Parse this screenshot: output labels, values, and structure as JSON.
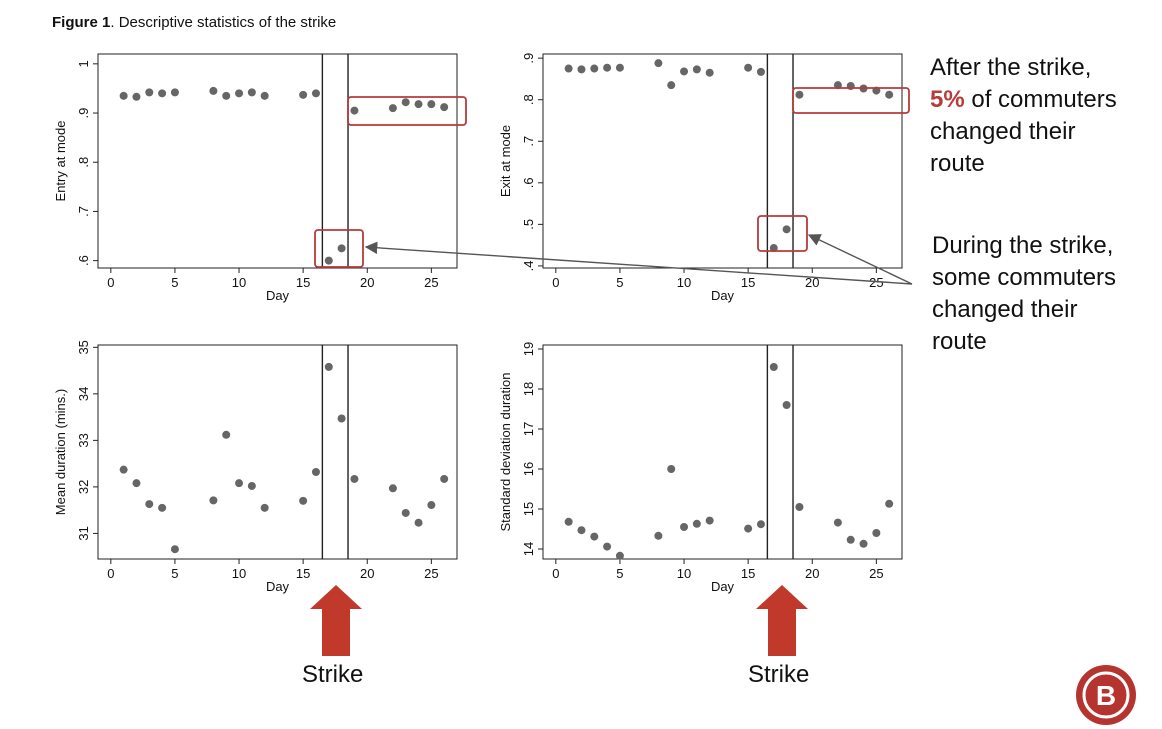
{
  "figure": {
    "title_bold": "Figure 1",
    "title_rest": ". Descriptive statistics of the strike"
  },
  "callouts": {
    "after": {
      "line1": "After the strike,",
      "highlight": "5%",
      "rest": " of commuters",
      "line3": "changed their",
      "line4": "route"
    },
    "during": {
      "line1": "During the strike,",
      "line2": "some commuters",
      "line3": "changed their",
      "line4": "route"
    }
  },
  "strike_labels": [
    "Strike",
    "Strike"
  ],
  "logo": {
    "letter": "B"
  },
  "colors": {
    "points": "#666666",
    "accent": "#b83a3a",
    "arrow": "#c0392b",
    "logo_bg": "#b5342f"
  },
  "chart_data": [
    {
      "type": "scatter",
      "ylabel": "Entry at mode",
      "xlabel": "Day",
      "xlim": [
        -1,
        27
      ],
      "ylim": [
        0.585,
        1.02
      ],
      "xticks": [
        0,
        5,
        10,
        15,
        20,
        25
      ],
      "yticks": [
        ".6",
        ".7",
        ".8",
        ".9",
        "1"
      ],
      "ytick_values": [
        0.6,
        0.7,
        0.8,
        0.9,
        1.0
      ],
      "strike_lines": [
        16.5,
        18.5
      ],
      "grid": false,
      "x": [
        1,
        2,
        3,
        4,
        5,
        8,
        9,
        10,
        11,
        12,
        15,
        16,
        17,
        18,
        19,
        22,
        23,
        24,
        25,
        26
      ],
      "y": [
        0.935,
        0.933,
        0.942,
        0.94,
        0.942,
        0.945,
        0.935,
        0.94,
        0.942,
        0.935,
        0.937,
        0.94,
        0.6,
        0.625,
        0.905,
        0.91,
        0.922,
        0.918,
        0.918,
        0.912
      ]
    },
    {
      "type": "scatter",
      "ylabel": "Exit at mode",
      "xlabel": "Day",
      "xlim": [
        -1,
        27
      ],
      "ylim": [
        0.395,
        0.91
      ],
      "xticks": [
        0,
        5,
        10,
        15,
        20,
        25
      ],
      "yticks": [
        ".4",
        ".5",
        ".6",
        ".7",
        ".8",
        ".9"
      ],
      "ytick_values": [
        0.4,
        0.5,
        0.6,
        0.7,
        0.8,
        0.9
      ],
      "strike_lines": [
        16.5,
        18.5
      ],
      "grid": false,
      "x": [
        1,
        2,
        3,
        4,
        5,
        8,
        9,
        10,
        11,
        12,
        15,
        16,
        17,
        18,
        19,
        22,
        23,
        24,
        25,
        26
      ],
      "y": [
        0.875,
        0.873,
        0.875,
        0.877,
        0.877,
        0.888,
        0.835,
        0.868,
        0.873,
        0.865,
        0.877,
        0.867,
        0.443,
        0.488,
        0.812,
        0.835,
        0.833,
        0.827,
        0.822,
        0.812
      ]
    },
    {
      "type": "scatter",
      "ylabel": "Mean duration (mins.)",
      "xlabel": "Day",
      "xlim": [
        -1,
        27
      ],
      "ylim": [
        30.45,
        35.05
      ],
      "xticks": [
        0,
        5,
        10,
        15,
        20,
        25
      ],
      "yticks": [
        "31",
        "32",
        "33",
        "34",
        "35"
      ],
      "ytick_values": [
        31,
        32,
        33,
        34,
        35
      ],
      "strike_lines": [
        16.5,
        18.5
      ],
      "grid": false,
      "x": [
        1,
        2,
        3,
        4,
        5,
        8,
        9,
        10,
        11,
        12,
        15,
        16,
        17,
        18,
        19,
        22,
        23,
        24,
        25,
        26
      ],
      "y": [
        32.37,
        32.08,
        31.63,
        31.55,
        30.66,
        31.71,
        33.12,
        32.08,
        32.02,
        31.55,
        31.7,
        32.32,
        34.58,
        33.47,
        32.17,
        31.97,
        31.44,
        31.23,
        31.61,
        32.17
      ]
    },
    {
      "type": "scatter",
      "ylabel": "Standard deviation duration",
      "xlabel": "Day",
      "xlim": [
        -1,
        27
      ],
      "ylim": [
        13.75,
        19.1
      ],
      "xticks": [
        0,
        5,
        10,
        15,
        20,
        25
      ],
      "yticks": [
        "14",
        "15",
        "16",
        "17",
        "18",
        "19"
      ],
      "ytick_values": [
        14,
        15,
        16,
        17,
        18,
        19
      ],
      "strike_lines": [
        16.5,
        18.5
      ],
      "grid": false,
      "x": [
        1,
        2,
        3,
        4,
        5,
        8,
        9,
        10,
        11,
        12,
        15,
        16,
        17,
        18,
        19,
        22,
        23,
        24,
        25,
        26
      ],
      "y": [
        14.68,
        14.47,
        14.31,
        14.06,
        13.83,
        14.33,
        16.0,
        14.55,
        14.63,
        14.71,
        14.51,
        14.62,
        18.55,
        17.6,
        15.05,
        14.66,
        14.23,
        14.13,
        14.4,
        15.13
      ]
    }
  ]
}
